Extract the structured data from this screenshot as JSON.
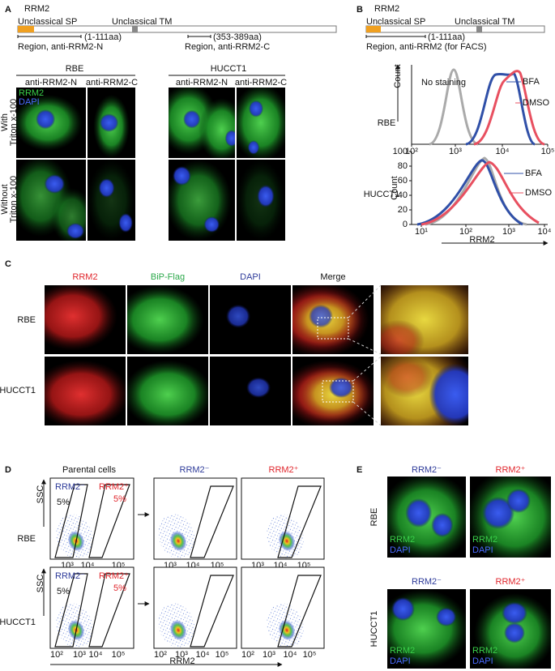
{
  "panel_a": {
    "letter": "A",
    "protein": "RRM2",
    "domain_sp": "Unclassical SP",
    "domain_tm": "Unclassical TM",
    "region_n_range": "(1-111aa)",
    "region_n": "Region, anti-RRM2-N",
    "region_c_range": "(353-389aa)",
    "region_c": "Region, anti-RRM2-C",
    "cell_lines": [
      "RBE",
      "HUCCT1"
    ],
    "antibodies": [
      "anti-RRM2-N",
      "anti-RRM2-C",
      "anti-RRM2-N",
      "anti-RRM2-C"
    ],
    "rows": [
      [
        "With",
        "Triton x-100"
      ],
      [
        "Without",
        "Triton x-100"
      ]
    ],
    "legend": [
      "RRM2",
      "DAPI"
    ]
  },
  "panel_b": {
    "letter": "B",
    "protein": "RRM2",
    "domain_sp": "Unclassical SP",
    "domain_tm": "Unclassical TM",
    "region_range": "(1-111aa)",
    "region": "Region, anti-RRM2 (for FACS)",
    "y_label": "Count",
    "x_label": "RRM2",
    "plots": [
      {
        "cell_line": "RBE",
        "xticks": [
          "10²",
          "10³",
          "10⁴",
          "10⁵"
        ],
        "labels": [
          "No staining",
          "BFA",
          "DMSO"
        ]
      },
      {
        "cell_line": "HUCCT1",
        "yticks": [
          "0",
          "20",
          "40",
          "60",
          "80",
          "100"
        ],
        "xticks": [
          "10¹",
          "10²",
          "10³",
          "10⁴"
        ],
        "labels": [
          "BFA",
          "DMSO"
        ]
      }
    ]
  },
  "panel_c": {
    "letter": "C",
    "channels": [
      "RRM2",
      "BiP-Flag",
      "DAPI",
      "Merge"
    ],
    "cell_lines": [
      "RBE",
      "HUCCT1"
    ]
  },
  "panel_d": {
    "letter": "D",
    "parental": "Parental cells",
    "gates": [
      "RRM2⁻",
      "RRM2⁺"
    ],
    "y_label": "SSC",
    "x_label": "RRM2",
    "rows": [
      {
        "cell_line": "RBE",
        "percents": [
          "5%",
          "5%"
        ],
        "xticks": [
          "10³",
          "10⁴",
          "10⁵"
        ]
      },
      {
        "cell_line": "HUCCT1",
        "percents": [
          "5%",
          "5%"
        ],
        "xticks": [
          "10²",
          "10³",
          "10⁴",
          "10⁵"
        ]
      }
    ]
  },
  "panel_e": {
    "letter": "E",
    "columns": [
      "RRM2⁻",
      "RRM2⁺"
    ],
    "cell_lines": [
      "RBE",
      "HUCCT1"
    ],
    "stains": [
      "RRM2",
      "DAPI"
    ]
  }
}
